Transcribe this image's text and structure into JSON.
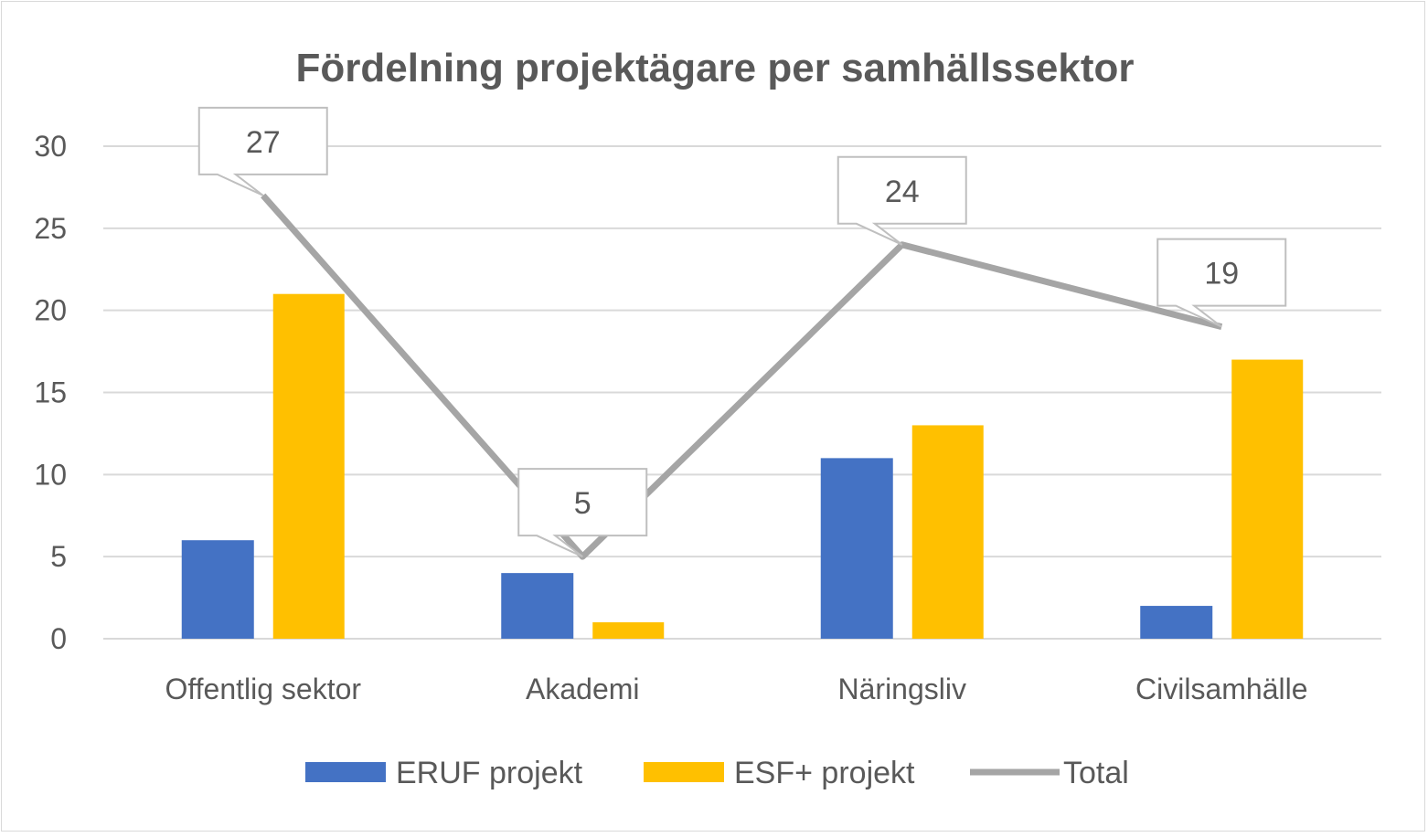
{
  "chart_data": {
    "type": "bar",
    "title": "Fördelning projektägare per samhällssektor",
    "categories": [
      "Offentlig sektor",
      "Akademi",
      "Näringsliv",
      "Civilsamhälle"
    ],
    "series": [
      {
        "name": "ERUF projekt",
        "type": "bar",
        "color": "#4472C4",
        "values": [
          6,
          4,
          11,
          2
        ]
      },
      {
        "name": "ESF+ projekt",
        "type": "bar",
        "color": "#FFC000",
        "values": [
          21,
          1,
          13,
          17
        ]
      },
      {
        "name": "Total",
        "type": "line",
        "color": "#A5A5A5",
        "values": [
          27,
          5,
          24,
          19
        ],
        "data_labels": true
      }
    ],
    "ylim": [
      0,
      30
    ],
    "yticks": [
      0,
      5,
      10,
      15,
      20,
      25,
      30
    ],
    "grid": true,
    "legend": "bottom"
  }
}
